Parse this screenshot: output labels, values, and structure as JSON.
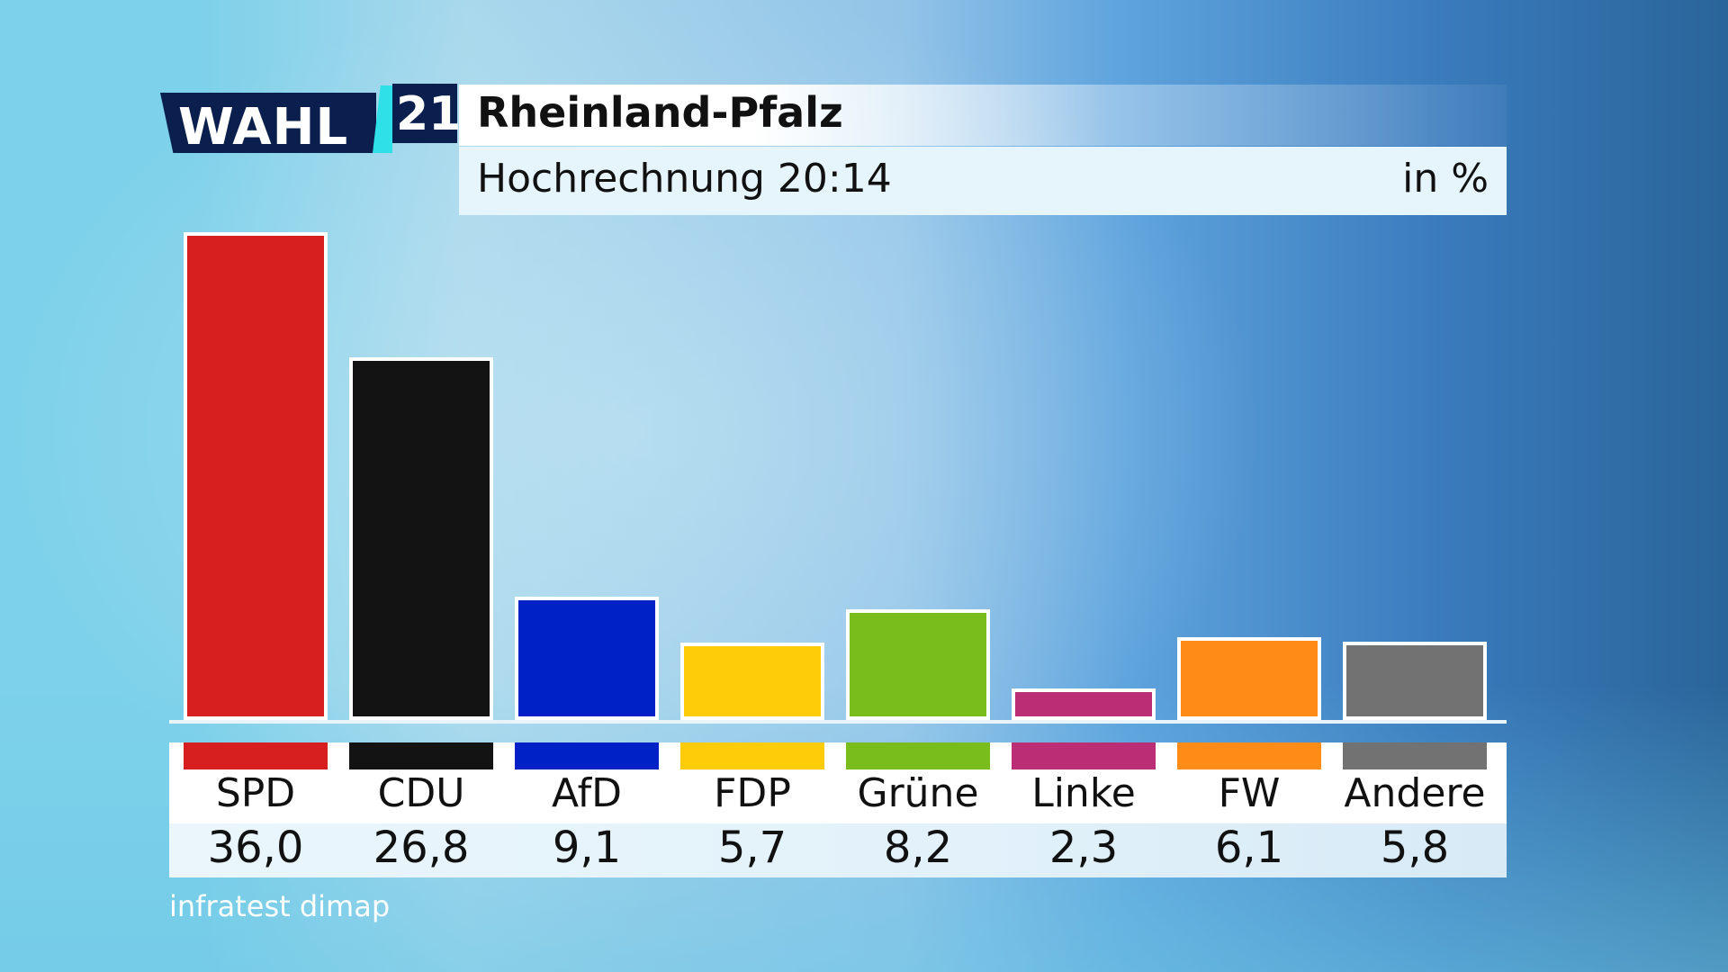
{
  "logo": {
    "wahl": "WAHL",
    "year": "21"
  },
  "header": {
    "title": "Rheinland-Pfalz",
    "subtitle": "Hochrechnung 20:14",
    "unit": "in %"
  },
  "source": "infratest dimap",
  "chart_data": {
    "type": "bar",
    "categories": [
      "SPD",
      "CDU",
      "AfD",
      "FDP",
      "Grüne",
      "Linke",
      "FW",
      "Andere"
    ],
    "values": [
      36.0,
      26.8,
      9.1,
      5.7,
      8.2,
      2.3,
      6.1,
      5.8
    ],
    "value_labels": [
      "36,0",
      "26,8",
      "9,1",
      "5,7",
      "8,2",
      "2,3",
      "6,1",
      "5,8"
    ],
    "colors": [
      "#d71f1f",
      "#131313",
      "#0021c6",
      "#ffcc0a",
      "#79bd1c",
      "#bb2d75",
      "#ff8c17",
      "#727272"
    ],
    "ylim": [
      0,
      36.0
    ],
    "grid": false,
    "legend": "bottom"
  }
}
